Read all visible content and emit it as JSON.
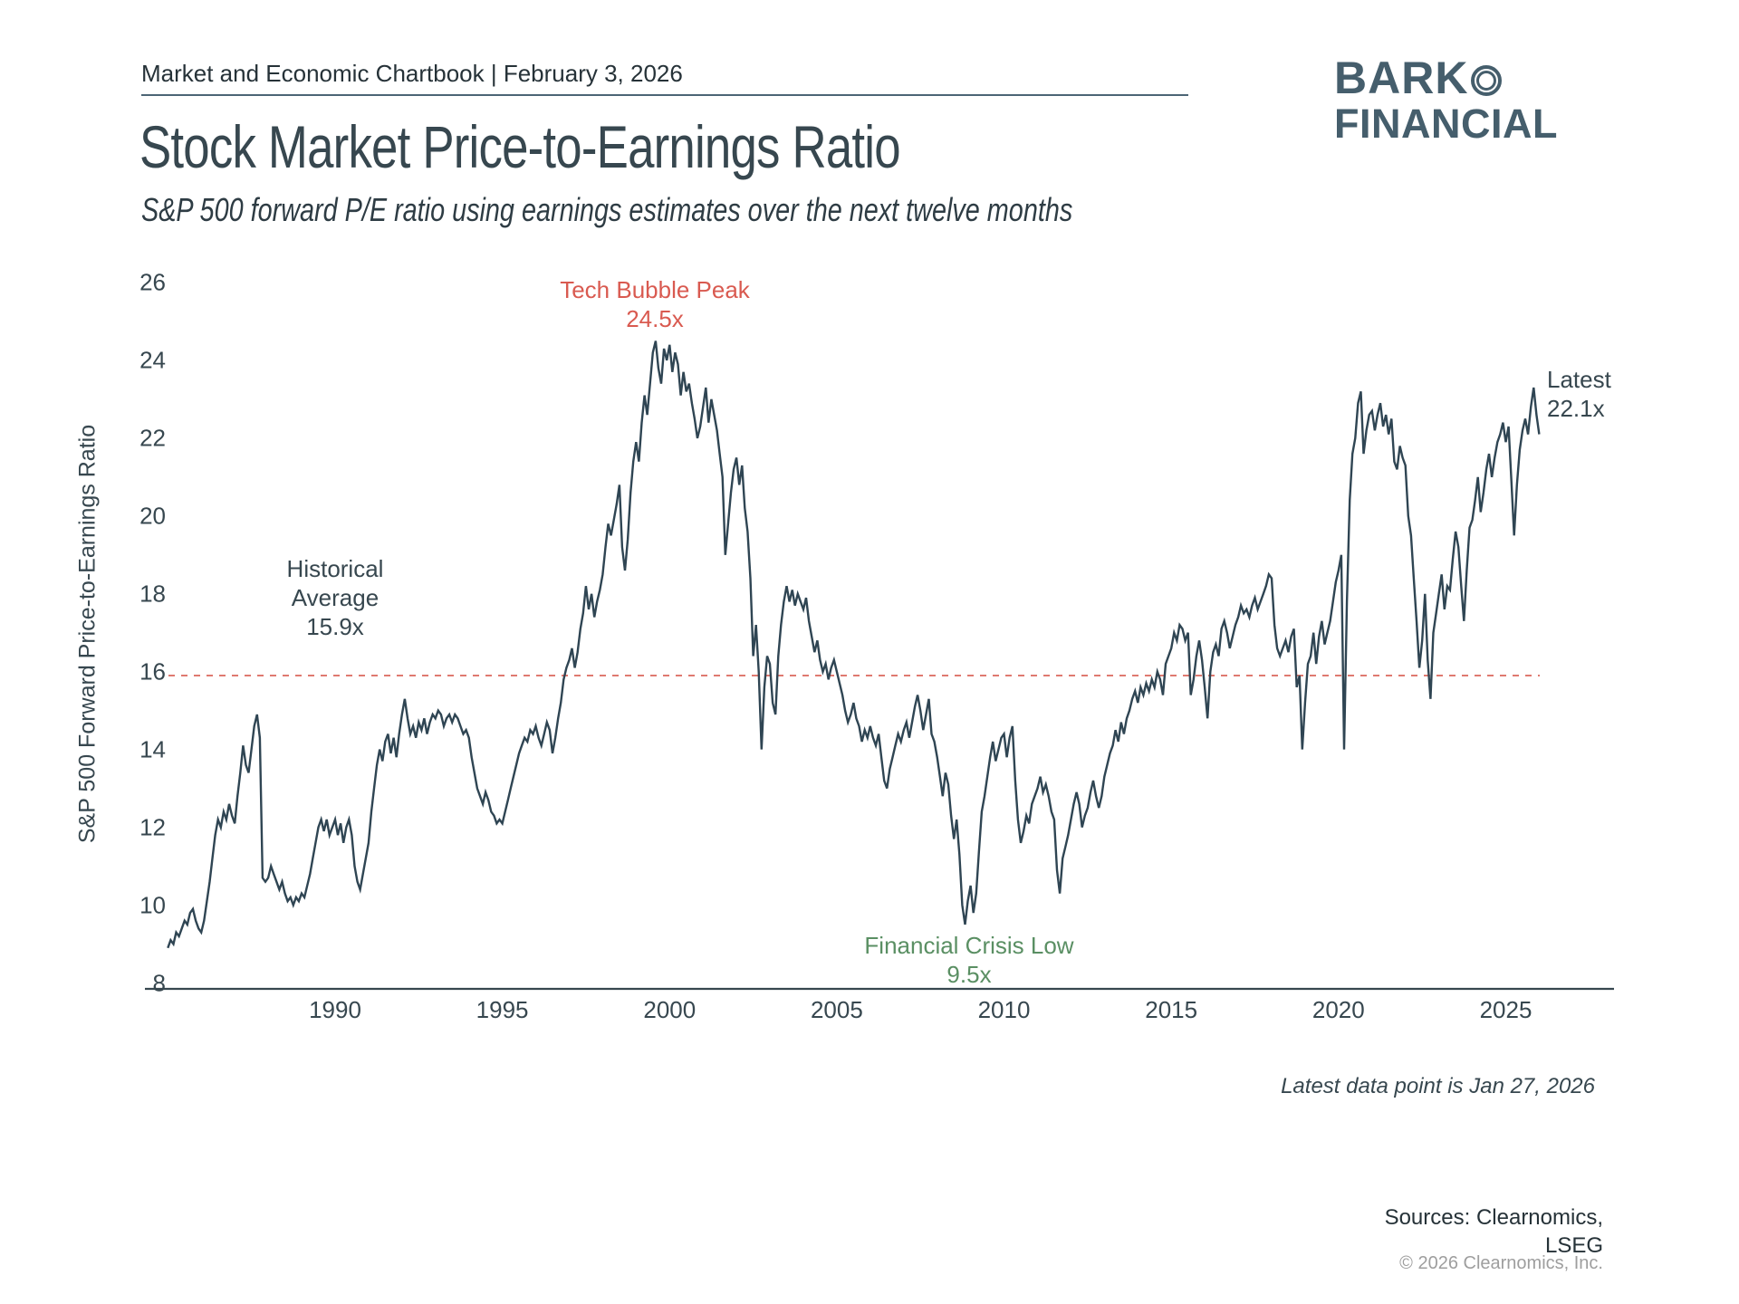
{
  "header": {
    "kicker": "Market and Economic Chartbook | February 3, 2026",
    "title": "Stock Market Price-to-Earnings Ratio",
    "subtitle": "S&P 500 forward P/E ratio using earnings estimates over the next twelve months"
  },
  "logo": {
    "name_prefix": "BARK",
    "name_line2": "FINANCIAL",
    "ring_icon": "double-circle"
  },
  "chart_data": {
    "type": "line",
    "title": "Stock Market Price-to-Earnings Ratio",
    "xlabel": "",
    "ylabel": "S&P 500 Forward Price-to-Earnings Ratio",
    "x_start_year": 1985,
    "x_frequency": "monthly",
    "x_end_label": "Jan 2026",
    "xticks": [
      1990,
      1995,
      2000,
      2005,
      2010,
      2015,
      2020,
      2025
    ],
    "yticks": [
      26,
      24,
      22,
      20,
      18,
      16,
      14,
      12,
      10,
      8
    ],
    "ylim": [
      8,
      26
    ],
    "xlim": [
      1985,
      2028
    ],
    "grid": false,
    "legend": "none",
    "average_line": {
      "value": 15.9,
      "style": "dashed"
    },
    "series": [
      {
        "name": "S&P 500 forward P/E ratio",
        "values": [
          8.9,
          9.1,
          9.0,
          9.3,
          9.2,
          9.4,
          9.6,
          9.5,
          9.8,
          9.9,
          9.6,
          9.4,
          9.3,
          9.6,
          10.1,
          10.6,
          11.2,
          11.8,
          12.2,
          12.0,
          12.4,
          12.2,
          12.6,
          12.3,
          12.1,
          12.8,
          13.4,
          14.1,
          13.6,
          13.4,
          14.0,
          14.6,
          14.9,
          14.3,
          10.7,
          10.6,
          10.7,
          11.0,
          10.8,
          10.6,
          10.4,
          10.6,
          10.3,
          10.1,
          10.2,
          10.0,
          10.2,
          10.1,
          10.3,
          10.2,
          10.5,
          10.8,
          11.2,
          11.6,
          12.0,
          12.2,
          11.9,
          12.2,
          11.8,
          12.0,
          12.2,
          11.8,
          12.1,
          11.6,
          12.0,
          12.2,
          11.8,
          11.0,
          10.6,
          10.4,
          10.8,
          11.2,
          11.6,
          12.4,
          13.0,
          13.6,
          14.0,
          13.7,
          14.2,
          14.4,
          13.9,
          14.3,
          13.8,
          14.4,
          14.9,
          15.3,
          14.8,
          14.4,
          14.6,
          14.3,
          14.7,
          14.5,
          14.8,
          14.4,
          14.7,
          14.9,
          14.8,
          15.0,
          14.9,
          14.6,
          14.8,
          14.9,
          14.7,
          14.9,
          14.8,
          14.6,
          14.4,
          14.5,
          14.3,
          13.8,
          13.4,
          13.0,
          12.8,
          12.6,
          12.9,
          12.7,
          12.4,
          12.3,
          12.1,
          12.2,
          12.1,
          12.4,
          12.7,
          13.0,
          13.3,
          13.6,
          13.9,
          14.1,
          14.3,
          14.2,
          14.5,
          14.4,
          14.6,
          14.3,
          14.1,
          14.4,
          14.7,
          14.5,
          13.9,
          14.3,
          14.8,
          15.2,
          15.8,
          16.1,
          16.3,
          16.6,
          16.1,
          16.5,
          17.1,
          17.5,
          18.2,
          17.6,
          18.0,
          17.4,
          17.8,
          18.1,
          18.5,
          19.2,
          19.8,
          19.5,
          19.9,
          20.3,
          20.8,
          19.2,
          18.6,
          19.4,
          20.6,
          21.4,
          21.9,
          21.4,
          22.4,
          23.1,
          22.6,
          23.4,
          24.2,
          24.5,
          23.8,
          23.4,
          24.3,
          24.0,
          24.4,
          23.7,
          24.2,
          23.9,
          23.1,
          23.7,
          23.2,
          23.4,
          22.9,
          22.5,
          22.0,
          22.3,
          22.8,
          23.3,
          22.4,
          23.0,
          22.6,
          22.2,
          21.6,
          21.0,
          19.0,
          19.8,
          20.6,
          21.2,
          21.5,
          20.8,
          21.3,
          20.2,
          19.6,
          18.4,
          16.4,
          17.2,
          16.0,
          14.0,
          15.6,
          16.4,
          16.2,
          15.2,
          14.9,
          16.4,
          17.2,
          17.8,
          18.2,
          17.8,
          18.1,
          17.7,
          18.0,
          17.8,
          17.6,
          17.9,
          17.3,
          16.9,
          16.5,
          16.8,
          16.3,
          16.0,
          16.2,
          15.8,
          16.1,
          16.3,
          16.0,
          15.7,
          15.4,
          15.0,
          14.7,
          14.9,
          15.2,
          14.8,
          14.6,
          14.2,
          14.5,
          14.3,
          14.6,
          14.3,
          14.1,
          14.4,
          13.8,
          13.2,
          13.0,
          13.5,
          13.8,
          14.1,
          14.4,
          14.2,
          14.5,
          14.7,
          14.3,
          14.7,
          15.1,
          15.4,
          15.0,
          14.5,
          14.9,
          15.3,
          14.4,
          14.2,
          13.8,
          13.3,
          12.8,
          13.4,
          13.1,
          12.3,
          11.7,
          12.2,
          11.3,
          10.0,
          9.5,
          10.1,
          10.5,
          9.8,
          10.3,
          11.4,
          12.4,
          12.8,
          13.3,
          13.8,
          14.2,
          13.7,
          14.0,
          14.3,
          14.4,
          13.8,
          14.3,
          14.6,
          13.2,
          12.2,
          11.6,
          11.9,
          12.3,
          12.1,
          12.6,
          12.8,
          13.0,
          13.3,
          12.9,
          13.1,
          12.8,
          12.4,
          12.2,
          10.9,
          10.3,
          11.2,
          11.5,
          11.8,
          12.2,
          12.6,
          12.9,
          12.6,
          12.0,
          12.3,
          12.5,
          12.9,
          13.2,
          12.8,
          12.5,
          12.8,
          13.3,
          13.6,
          13.9,
          14.1,
          14.5,
          14.2,
          14.7,
          14.4,
          14.8,
          15.0,
          15.3,
          15.5,
          15.2,
          15.6,
          15.4,
          15.7,
          15.5,
          15.8,
          15.6,
          16.0,
          15.8,
          15.4,
          16.2,
          16.4,
          16.6,
          17.0,
          16.8,
          17.2,
          17.1,
          16.8,
          17.0,
          15.4,
          15.8,
          16.4,
          16.8,
          16.3,
          15.6,
          14.8,
          16.0,
          16.5,
          16.7,
          16.4,
          17.1,
          17.3,
          17.0,
          16.6,
          16.9,
          17.2,
          17.4,
          17.7,
          17.5,
          17.6,
          17.4,
          17.7,
          17.9,
          17.6,
          17.8,
          18.0,
          18.2,
          18.5,
          18.4,
          17.2,
          16.6,
          16.4,
          16.6,
          16.8,
          16.5,
          16.9,
          17.1,
          15.6,
          15.9,
          14.0,
          15.2,
          16.2,
          16.4,
          17.0,
          16.2,
          16.9,
          17.3,
          16.7,
          17.0,
          17.3,
          17.8,
          18.3,
          18.6,
          19.0,
          14.0,
          17.8,
          20.4,
          21.6,
          22.0,
          22.9,
          23.2,
          21.6,
          22.2,
          22.6,
          22.7,
          22.2,
          22.6,
          22.9,
          22.3,
          22.6,
          22.1,
          22.5,
          21.4,
          21.2,
          21.8,
          21.5,
          21.3,
          20.0,
          19.5,
          18.4,
          17.3,
          16.1,
          16.8,
          18.0,
          16.3,
          15.3,
          17.0,
          17.5,
          18.0,
          18.5,
          17.6,
          18.2,
          18.1,
          18.9,
          19.6,
          19.2,
          18.2,
          17.3,
          18.6,
          19.7,
          19.9,
          20.4,
          21.0,
          20.1,
          20.6,
          21.2,
          21.6,
          21.0,
          21.5,
          21.9,
          22.1,
          22.4,
          21.9,
          22.3,
          20.9,
          19.5,
          20.8,
          21.7,
          22.2,
          22.5,
          22.1,
          22.8,
          23.3,
          22.6,
          22.1
        ]
      }
    ],
    "annotations": {
      "tech_bubble": {
        "line1": "Tech Bubble Peak",
        "line2": "24.5x"
      },
      "historical_average": {
        "line1": "Historical",
        "line2": "Average",
        "line3": "15.9x"
      },
      "financial_crisis": {
        "line1": "Financial Crisis Low",
        "line2": "9.5x"
      },
      "latest": {
        "line1": "Latest",
        "line2": "22.1x",
        "value": 22.1
      }
    }
  },
  "footer": {
    "latest_note": "Latest data point is Jan 27, 2026",
    "sources_line1": "Sources: Clearnomics,",
    "sources_line2": "LSEG",
    "copyright": "© 2026 Clearnomics, Inc."
  },
  "colors": {
    "ink": "#37474f",
    "line": "#2f4553",
    "avg": "#df7a70",
    "red": "#d95a50",
    "green": "#5a8f63",
    "muted": "#9e9e9e",
    "logo": "#455e6c"
  }
}
